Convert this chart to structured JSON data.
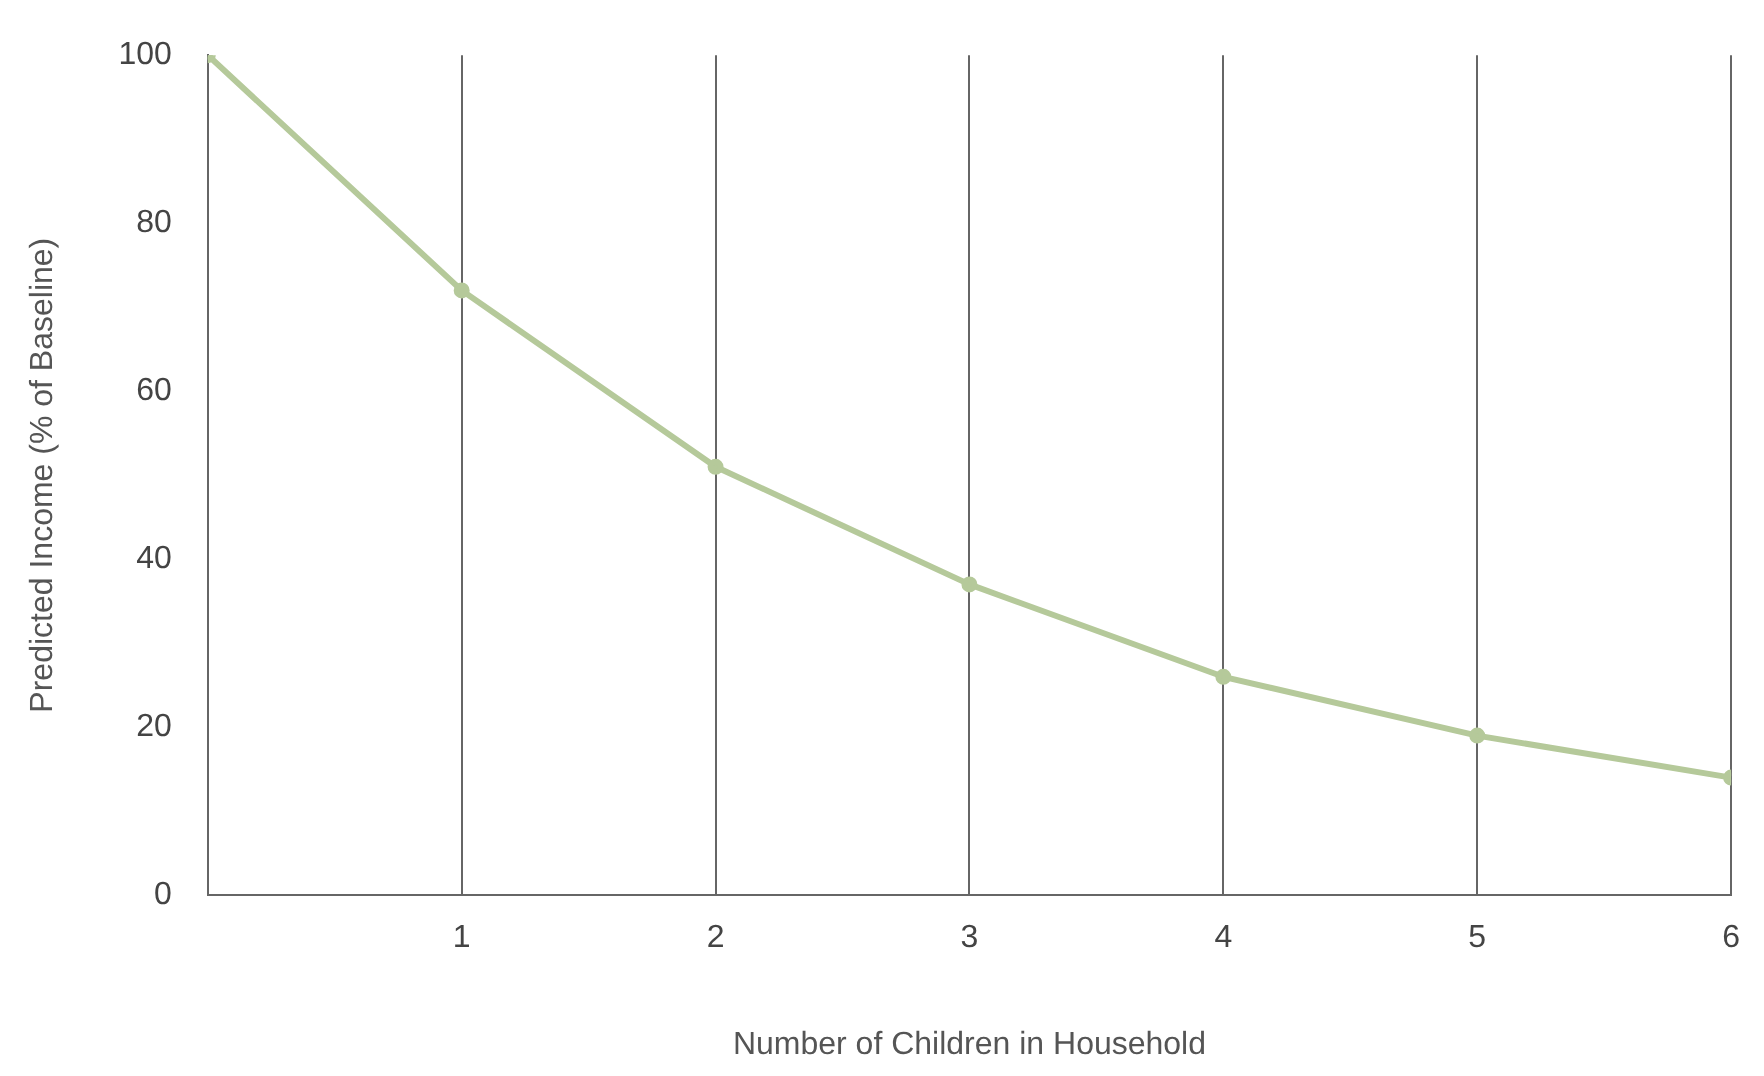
{
  "chart_data": {
    "type": "line",
    "xlabel": "Number of Children in Household",
    "ylabel": "Predicted Income (% of Baseline)",
    "x": [
      0,
      1,
      2,
      3,
      4,
      5,
      6
    ],
    "series": [
      {
        "color": "#b5c99a",
        "values": [
          100,
          72,
          51,
          37,
          26,
          19,
          14
        ]
      }
    ],
    "xlim": [
      0,
      6
    ],
    "xticks": [
      {
        "value": 0,
        "label": null
      },
      1,
      2,
      3,
      4,
      5,
      6
    ],
    "ylim": [
      0,
      100
    ],
    "yticks": [
      0,
      20,
      40,
      60,
      80,
      100
    ],
    "grid": "x",
    "legend": false,
    "marker": "circle",
    "line_style": "solid"
  }
}
